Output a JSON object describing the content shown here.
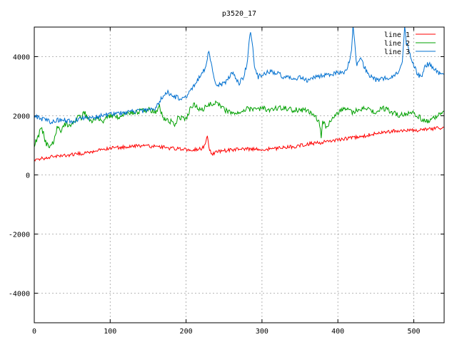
{
  "chart_data": {
    "type": "line",
    "title": "p3520_17",
    "xlabel": "",
    "ylabel": "",
    "xlim": [
      0,
      540
    ],
    "ylim": [
      -5000,
      5000
    ],
    "x_ticks": [
      "0",
      "100",
      "200",
      "300",
      "400",
      "500"
    ],
    "y_ticks": [
      "-4000",
      "-2000",
      "0",
      "2000",
      "4000"
    ],
    "grid": true,
    "legend_position": "top-right",
    "series": [
      {
        "name": "line 1",
        "color": "#ff0000",
        "x": [
          0,
          20,
          40,
          60,
          80,
          100,
          120,
          140,
          160,
          180,
          200,
          220,
          225,
          228,
          230,
          232,
          235,
          240,
          260,
          280,
          300,
          320,
          340,
          360,
          380,
          400,
          420,
          440,
          460,
          480,
          500,
          520,
          540
        ],
        "y": [
          500,
          600,
          650,
          720,
          800,
          900,
          950,
          980,
          960,
          900,
          850,
          880,
          1000,
          1300,
          950,
          800,
          700,
          780,
          850,
          880,
          850,
          900,
          950,
          1050,
          1100,
          1200,
          1250,
          1350,
          1450,
          1500,
          1500,
          1550,
          1600
        ]
      },
      {
        "name": "line 2",
        "color": "#00a000",
        "x": [
          0,
          5,
          10,
          15,
          20,
          25,
          30,
          35,
          40,
          50,
          60,
          62,
          65,
          70,
          75,
          80,
          90,
          100,
          110,
          120,
          130,
          140,
          150,
          160,
          165,
          170,
          180,
          185,
          190,
          195,
          200,
          205,
          210,
          220,
          230,
          240,
          250,
          260,
          270,
          280,
          290,
          300,
          310,
          320,
          330,
          340,
          350,
          360,
          370,
          375,
          378,
          380,
          385,
          390,
          400,
          410,
          420,
          425,
          430,
          440,
          450,
          460,
          470,
          480,
          490,
          500,
          510,
          520,
          530,
          540
        ],
        "y": [
          1000,
          1300,
          1600,
          1100,
          900,
          1100,
          1600,
          1500,
          1700,
          1700,
          2100,
          1800,
          2200,
          1900,
          1800,
          1900,
          1800,
          2000,
          1950,
          2050,
          2100,
          2150,
          2200,
          2150,
          2300,
          1900,
          1800,
          1700,
          2000,
          1900,
          1900,
          2200,
          2400,
          2200,
          2350,
          2500,
          2200,
          2100,
          2150,
          2250,
          2200,
          2250,
          2200,
          2250,
          2250,
          2200,
          2200,
          2200,
          2000,
          1800,
          1300,
          1800,
          1600,
          1800,
          2100,
          2250,
          2100,
          2200,
          2250,
          2200,
          2150,
          2250,
          2150,
          2000,
          2050,
          2100,
          1900,
          1800,
          2000,
          2150
        ]
      },
      {
        "name": "line 3",
        "color": "#0070d0",
        "x": [
          0,
          10,
          20,
          30,
          40,
          50,
          60,
          70,
          80,
          90,
          100,
          110,
          120,
          130,
          140,
          150,
          160,
          170,
          175,
          180,
          190,
          200,
          210,
          215,
          220,
          225,
          230,
          233,
          240,
          250,
          255,
          260,
          265,
          270,
          275,
          280,
          283,
          285,
          288,
          290,
          295,
          300,
          310,
          320,
          330,
          340,
          350,
          360,
          370,
          380,
          390,
          400,
          410,
          415,
          418,
          420,
          423,
          425,
          430,
          440,
          450,
          460,
          470,
          480,
          485,
          488,
          490,
          495,
          500,
          505,
          510,
          515,
          520,
          525,
          530,
          535,
          540
        ],
        "y": [
          2000,
          1900,
          1800,
          1850,
          1850,
          1800,
          1900,
          1900,
          1950,
          2000,
          2050,
          2100,
          2100,
          2150,
          2150,
          2200,
          2250,
          2700,
          2800,
          2700,
          2600,
          2650,
          3000,
          3200,
          3400,
          3600,
          4200,
          3800,
          3000,
          3100,
          3200,
          3500,
          3300,
          3100,
          3300,
          3700,
          4500,
          4900,
          4300,
          3600,
          3300,
          3400,
          3500,
          3450,
          3300,
          3250,
          3300,
          3200,
          3300,
          3350,
          3400,
          3450,
          3500,
          3800,
          4200,
          5000,
          4200,
          3700,
          3900,
          3400,
          3200,
          3250,
          3300,
          3500,
          3900,
          5000,
          4500,
          4100,
          3700,
          3400,
          3300,
          3700,
          3750,
          3600,
          3500,
          3400,
          3400
        ]
      }
    ]
  }
}
